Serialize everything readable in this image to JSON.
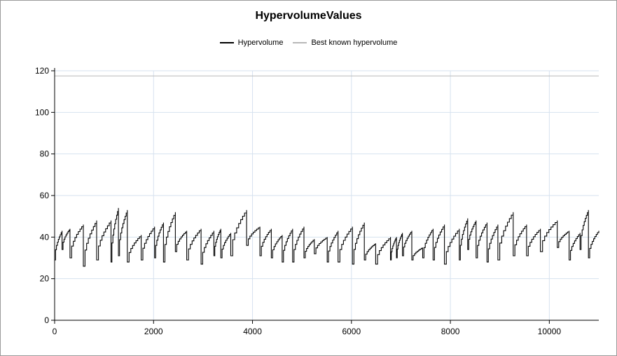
{
  "chart_data": {
    "type": "line",
    "title": "HypervolumeValues",
    "xlabel": "",
    "ylabel": "",
    "xlim": [
      0,
      11000
    ],
    "ylim": [
      0,
      120
    ],
    "xticks": [
      0,
      2000,
      4000,
      6000,
      8000,
      10000
    ],
    "yticks": [
      0,
      20,
      40,
      60,
      80,
      100,
      120
    ],
    "grid": true,
    "legend_position": "top-center",
    "colors": {
      "hypervolume": "#000000",
      "best_known": "#b8b8b8",
      "grid": "#d6e2ef"
    },
    "series": [
      {
        "name": "Hypervolume",
        "cycles": [
          {
            "x0": 0,
            "x1": 150,
            "start": 29,
            "end": 43
          },
          {
            "x0": 150,
            "x1": 310,
            "start": 34,
            "end": 44
          },
          {
            "x0": 310,
            "x1": 580,
            "start": 30,
            "end": 46
          },
          {
            "x0": 580,
            "x1": 850,
            "start": 26,
            "end": 48
          },
          {
            "x0": 850,
            "x1": 1140,
            "start": 29,
            "end": 48
          },
          {
            "x0": 1140,
            "x1": 1290,
            "start": 28,
            "end": 54
          },
          {
            "x0": 1290,
            "x1": 1470,
            "start": 31,
            "end": 53
          },
          {
            "x0": 1470,
            "x1": 1750,
            "start": 28,
            "end": 41
          },
          {
            "x0": 1750,
            "x1": 2020,
            "start": 29,
            "end": 45
          },
          {
            "x0": 2020,
            "x1": 2200,
            "start": 30,
            "end": 47
          },
          {
            "x0": 2200,
            "x1": 2440,
            "start": 28,
            "end": 52
          },
          {
            "x0": 2440,
            "x1": 2670,
            "start": 33,
            "end": 43
          },
          {
            "x0": 2670,
            "x1": 2960,
            "start": 29,
            "end": 44
          },
          {
            "x0": 2960,
            "x1": 3220,
            "start": 27,
            "end": 43
          },
          {
            "x0": 3220,
            "x1": 3360,
            "start": 31,
            "end": 44
          },
          {
            "x0": 3360,
            "x1": 3560,
            "start": 30,
            "end": 42
          },
          {
            "x0": 3560,
            "x1": 3880,
            "start": 31,
            "end": 53
          },
          {
            "x0": 3880,
            "x1": 4150,
            "start": 36,
            "end": 45
          },
          {
            "x0": 4150,
            "x1": 4380,
            "start": 31,
            "end": 44
          },
          {
            "x0": 4380,
            "x1": 4600,
            "start": 30,
            "end": 41
          },
          {
            "x0": 4600,
            "x1": 4810,
            "start": 28,
            "end": 44
          },
          {
            "x0": 4810,
            "x1": 5040,
            "start": 28,
            "end": 45
          },
          {
            "x0": 5040,
            "x1": 5250,
            "start": 30,
            "end": 39
          },
          {
            "x0": 5250,
            "x1": 5510,
            "start": 32,
            "end": 40
          },
          {
            "x0": 5510,
            "x1": 5730,
            "start": 28,
            "end": 43
          },
          {
            "x0": 5730,
            "x1": 6020,
            "start": 28,
            "end": 45
          },
          {
            "x0": 6020,
            "x1": 6260,
            "start": 27,
            "end": 47
          },
          {
            "x0": 6260,
            "x1": 6490,
            "start": 29,
            "end": 37
          },
          {
            "x0": 6490,
            "x1": 6790,
            "start": 27,
            "end": 40
          },
          {
            "x0": 6790,
            "x1": 6910,
            "start": 29,
            "end": 40
          },
          {
            "x0": 6910,
            "x1": 7030,
            "start": 30,
            "end": 42
          },
          {
            "x0": 7030,
            "x1": 7220,
            "start": 31,
            "end": 43
          },
          {
            "x0": 7220,
            "x1": 7440,
            "start": 29,
            "end": 35
          },
          {
            "x0": 7440,
            "x1": 7650,
            "start": 30,
            "end": 44
          },
          {
            "x0": 7650,
            "x1": 7880,
            "start": 29,
            "end": 46
          },
          {
            "x0": 7880,
            "x1": 8180,
            "start": 27,
            "end": 44
          },
          {
            "x0": 8180,
            "x1": 8350,
            "start": 29,
            "end": 49
          },
          {
            "x0": 8350,
            "x1": 8520,
            "start": 34,
            "end": 48
          },
          {
            "x0": 8520,
            "x1": 8740,
            "start": 30,
            "end": 47
          },
          {
            "x0": 8740,
            "x1": 8960,
            "start": 28,
            "end": 46
          },
          {
            "x0": 8960,
            "x1": 9270,
            "start": 29,
            "end": 52
          },
          {
            "x0": 9270,
            "x1": 9540,
            "start": 31,
            "end": 46
          },
          {
            "x0": 9540,
            "x1": 9820,
            "start": 31,
            "end": 44
          },
          {
            "x0": 9820,
            "x1": 10160,
            "start": 33,
            "end": 48
          },
          {
            "x0": 10160,
            "x1": 10400,
            "start": 35,
            "end": 43
          },
          {
            "x0": 10400,
            "x1": 10620,
            "start": 29,
            "end": 42
          },
          {
            "x0": 10620,
            "x1": 10790,
            "start": 34,
            "end": 53
          },
          {
            "x0": 10790,
            "x1": 11000,
            "start": 30,
            "end": 43
          }
        ]
      },
      {
        "name": "Best known hypervolume",
        "x": [
          0,
          11000
        ],
        "values": [
          117.5,
          117.5
        ]
      }
    ]
  }
}
